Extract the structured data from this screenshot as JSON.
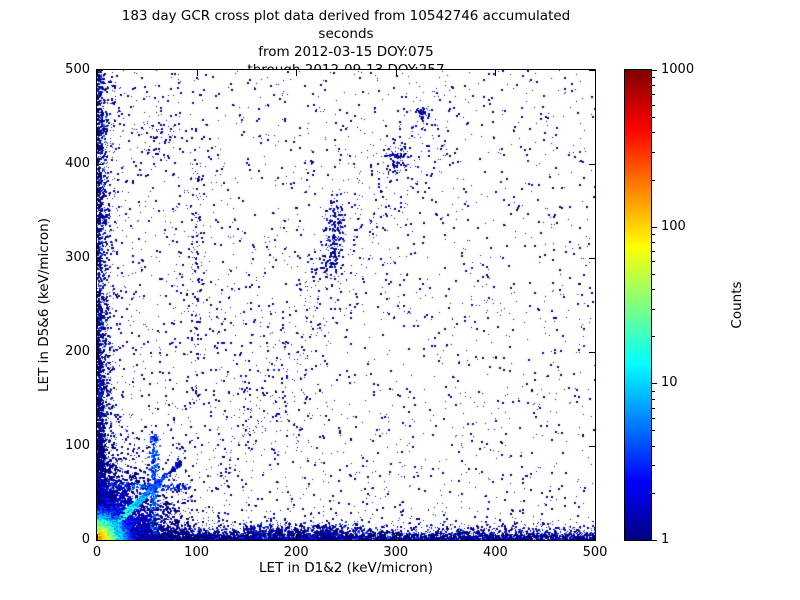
{
  "figure": {
    "background": "#ffffff",
    "axis_color": "#000000"
  },
  "chart_data": {
    "type": "scatter",
    "title_lines": [
      "183 day GCR cross plot data derived from 10542746 accumulated seconds",
      "from 2012-03-15 DOY:075",
      "through 2012-09-13 DOY:257"
    ],
    "xlabel": "LET in D1&2 (keV/micron)",
    "ylabel": "LET in D5&6 (keV/micron)",
    "xlim": [
      0,
      500
    ],
    "ylim": [
      0,
      500
    ],
    "xticks": [
      0,
      100,
      200,
      300,
      400,
      500
    ],
    "yticks": [
      0,
      100,
      200,
      300,
      400,
      500
    ],
    "grid": false,
    "colorbar": {
      "label": "Counts",
      "scale": "log",
      "min": 1,
      "max": 1000,
      "ticks": [
        1,
        10,
        100,
        1000
      ],
      "colormap": "jet",
      "gradient_stops": [
        [
          0.0,
          "#000080"
        ],
        [
          0.125,
          "#0000ff"
        ],
        [
          0.375,
          "#00ffff"
        ],
        [
          0.625,
          "#ffff00"
        ],
        [
          0.875,
          "#ff0000"
        ],
        [
          1.0,
          "#800000"
        ]
      ]
    },
    "seed": 20120315,
    "scatter_clusters": [
      {
        "name": "sparse-field",
        "type": "uniform",
        "n": 3000,
        "bias_x": 1.3,
        "bias_y": 1.25,
        "count": {
          "rand_hi": 0.08,
          "hi_max": 3
        }
      },
      {
        "name": "left-edge-column",
        "type": "edge_x",
        "n": 3200,
        "scale": 4.5,
        "bias": 1.7,
        "count": {
          "rand_hi": 0.18,
          "hi_max": 5
        }
      },
      {
        "name": "bottom-edge-row",
        "type": "edge_y",
        "n": 5200,
        "scale": 4.5,
        "bias": 1.3,
        "count": {
          "rand_hi": 0.18,
          "hi_max": 5
        }
      },
      {
        "name": "bottom-patch",
        "type": "band",
        "n": 600,
        "x0": 150,
        "y0": 5,
        "x1": 265,
        "y1": 5,
        "sigma": 6,
        "count": {
          "rand_hi": 0.25,
          "hi_max": 4
        }
      },
      {
        "name": "mid-diagonal-band",
        "type": "band",
        "n": 430,
        "x0": 140,
        "y0": 95,
        "x1": 335,
        "y1": 465,
        "sigma": 24,
        "count": {
          "rand_hi": 0.1,
          "hi_max": 3
        }
      },
      {
        "name": "band-dense-streak",
        "type": "band",
        "n": 230,
        "x0": 234,
        "y0": 285,
        "x1": 241,
        "y1": 358,
        "sigma": 5,
        "count": {
          "rand_hi": 0.3,
          "hi_max": 4
        }
      },
      {
        "name": "spot-a",
        "type": "spot",
        "n": 90,
        "cx": 301,
        "cy": 408,
        "sigma": 8,
        "count": {
          "rand_hi": 0.2,
          "hi_max": 3
        }
      },
      {
        "name": "spot-b",
        "type": "spot",
        "n": 55,
        "cx": 326,
        "cy": 453,
        "sigma": 5,
        "count": {
          "rand_hi": 0.2,
          "hi_max": 3
        }
      },
      {
        "name": "spot-c",
        "type": "spot",
        "n": 70,
        "cx": 62,
        "cy": 430,
        "sigma": 12,
        "count": {
          "rand_hi": 0.1,
          "hi_max": 2
        }
      },
      {
        "name": "left-mid-vertical",
        "type": "band",
        "n": 120,
        "x0": 99,
        "y0": 150,
        "x1": 99,
        "y1": 420,
        "sigma": 3,
        "count": {
          "rand_hi": 0.1,
          "hi_max": 2
        }
      },
      {
        "name": "origin-halo",
        "type": "exp_blob",
        "n": 7000,
        "scale_x": 22,
        "scale_y": 22,
        "count": {
          "base": 8,
          "tau": 30
        }
      },
      {
        "name": "vertical-spur",
        "type": "band",
        "n": 320,
        "x0": 57,
        "y0": 8,
        "x1": 57,
        "y1": 112,
        "sigma": 2.2,
        "count": {
          "base": 6,
          "tau": 200
        }
      },
      {
        "name": "horizontal-spur",
        "type": "band",
        "n": 220,
        "x0": 8,
        "y0": 57,
        "x1": 95,
        "y1": 57,
        "sigma": 2.2,
        "count": {
          "base": 5,
          "tau": 200
        }
      },
      {
        "name": "fan-streak-1",
        "type": "streak",
        "n": 700,
        "slope": 0.55,
        "len_scale": 20,
        "max_len": 80,
        "sigma": 1.8,
        "count": {
          "base": 10,
          "tau": 28
        }
      },
      {
        "name": "fan-streak-2",
        "type": "streak",
        "n": 700,
        "slope": 1.8,
        "len_scale": 20,
        "max_len": 80,
        "sigma": 1.8,
        "count": {
          "base": 10,
          "tau": 28
        }
      },
      {
        "name": "fan-streak-3",
        "type": "streak",
        "n": 420,
        "slope": 0.33,
        "len_scale": 16,
        "max_len": 60,
        "sigma": 1.8,
        "count": {
          "base": 5,
          "tau": 22
        }
      },
      {
        "name": "fan-streak-4",
        "type": "streak",
        "n": 420,
        "slope": 3.0,
        "len_scale": 16,
        "max_len": 60,
        "sigma": 1.8,
        "count": {
          "base": 5,
          "tau": 22
        }
      },
      {
        "name": "main-diagonal",
        "type": "streak",
        "n": 3000,
        "slope": 1.0,
        "len_scale": 30,
        "max_len": 115,
        "sigma": 1.3,
        "count": {
          "base": 60,
          "tau": 30
        }
      },
      {
        "name": "origin-core",
        "type": "exp_blob",
        "n": 24000,
        "scale_x": 6,
        "scale_y": 6,
        "count": {
          "base": 250,
          "tau": 7.5
        }
      }
    ]
  }
}
